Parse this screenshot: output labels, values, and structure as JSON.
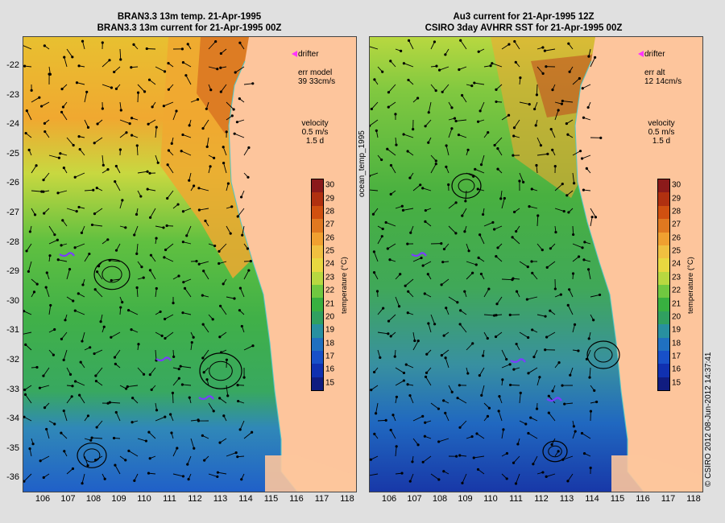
{
  "left_panel": {
    "title_line1": "BRAN3.3 13m temp. 21-Apr-1995",
    "title_line2": "BRAN3.3 13m current for 21-Apr-1995 00Z",
    "legend_drifter": "drifter",
    "err_label": "err model",
    "err_value": "39 33cm/s",
    "velocity_label": "velocity",
    "velocity_scale": "0.5 m/s",
    "velocity_time": "1.5 d"
  },
  "right_panel": {
    "title_line1": "Au3 current for 21-Apr-1995 12Z",
    "title_line2": "CSIRO 3day AVHRR SST for 21-Apr-1995 00Z",
    "legend_drifter": "drifter",
    "err_label": "err alt",
    "err_value": "12 14cm/s",
    "velocity_label": "velocity",
    "velocity_scale": "0.5 m/s",
    "velocity_time": "1.5 d"
  },
  "side_label": "ocean_temp_1995",
  "credit": "© CSIRO 2012   08-Jun-2012 14:37:41",
  "colorbar": {
    "title": "temperature (°C)",
    "ticks": [
      "30",
      "29",
      "28",
      "27",
      "26",
      "25",
      "24",
      "23",
      "22",
      "21",
      "20",
      "19",
      "18",
      "17",
      "16",
      "15"
    ],
    "colors": [
      "#8b1a1a",
      "#b03010",
      "#d05010",
      "#e07820",
      "#f0a030",
      "#f0c040",
      "#e8d840",
      "#b8d840",
      "#70c840",
      "#38b040",
      "#30a060",
      "#2890a0",
      "#2070c0",
      "#1850c8",
      "#1030b0",
      "#101c80"
    ]
  },
  "axes": {
    "y_ticks": [
      "-22",
      "-23",
      "-24",
      "-25",
      "-26",
      "-27",
      "-28",
      "-29",
      "-30",
      "-31",
      "-32",
      "-33",
      "-34",
      "-35",
      "-36"
    ],
    "x_ticks": [
      "106",
      "107",
      "108",
      "109",
      "110",
      "111",
      "112",
      "113",
      "114",
      "115",
      "116",
      "117",
      "118"
    ]
  },
  "map_colors": {
    "land": "#fdc59c",
    "coast_line": "#50c8c8",
    "background": "#e0e0e0"
  }
}
